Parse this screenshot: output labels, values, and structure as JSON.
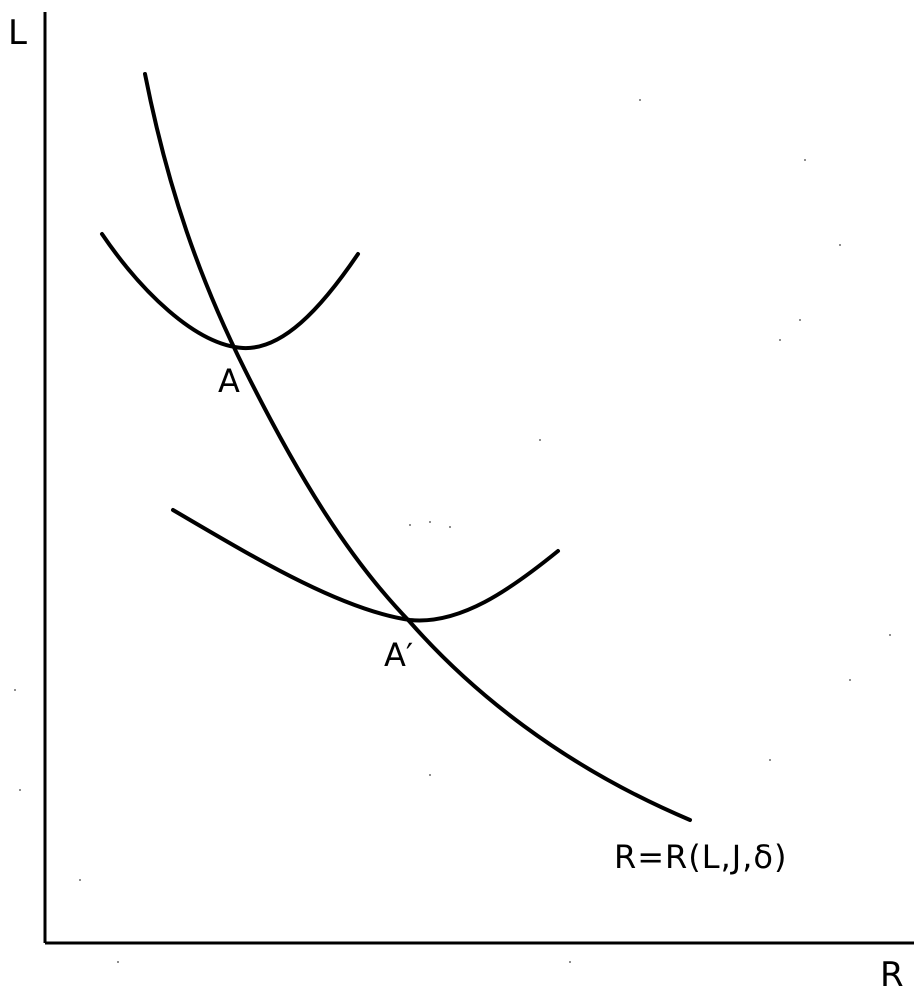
{
  "axes": {
    "y_label": "L",
    "x_label": "R"
  },
  "points": [
    {
      "id": "A",
      "label": "A"
    },
    {
      "id": "A-prime",
      "label": "A′"
    }
  ],
  "curves": {
    "constraint_label": "R=R(L,J,δ)"
  },
  "colors": {
    "ink": "#000000",
    "paper": "#ffffff"
  }
}
